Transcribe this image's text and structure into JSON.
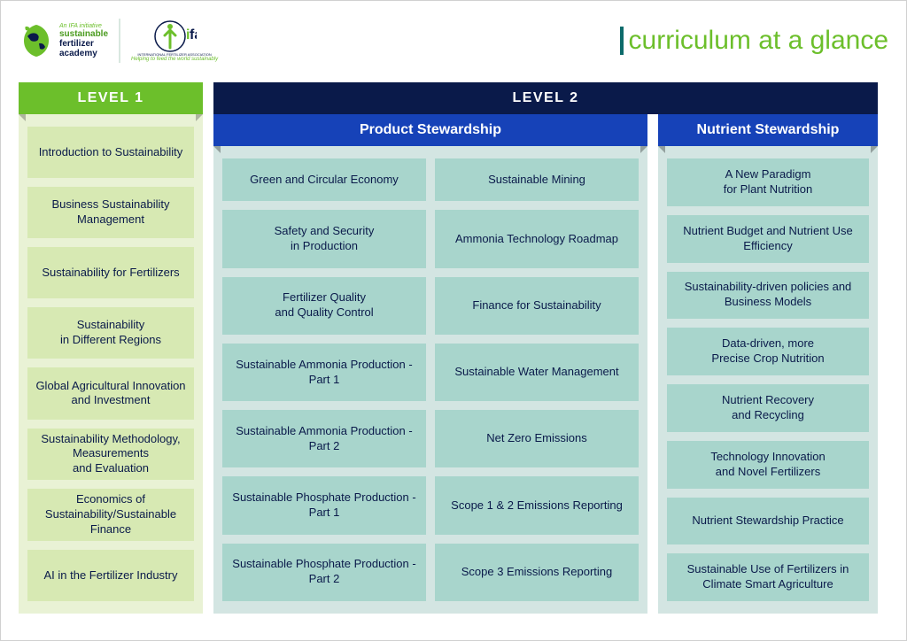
{
  "header": {
    "sfa_tagline": "An IFA initiative",
    "sfa_line1": "sustainable",
    "sfa_line2": "fertilizer",
    "sfa_line3": "academy",
    "ifa_name": "ifa",
    "ifa_sub": "INTERNATIONAL FERTILIZER ASSOCIATION",
    "ifa_tag": "Helping to feed the world sustainably",
    "title": "curriculum at a glance",
    "colors": {
      "green_primary": "#6cbf2b",
      "green_text": "#4a9b1f",
      "navy": "#0a1a4a",
      "blue_banner": "#1642b8",
      "teal_text": "#0d6b6b",
      "title_bar": "#0d6b6b"
    }
  },
  "level1": {
    "header": "LEVEL 1",
    "header_bg": "#6cbf2b",
    "body_bg": "#e9f2d5",
    "card_bg": "#d7e9b3",
    "card_text": "#0a1a4a",
    "items": [
      "Introduction to Sustainability",
      "Business Sustainability Management",
      "Sustainability for Fertilizers",
      "Sustainability\nin Different Regions",
      "Global Agricultural Innovation and Investment",
      "Sustainability Methodology, Measurements\nand Evaluation",
      "Economics of Sustainability/Sustainable Finance",
      "AI in the Fertilizer Industry"
    ]
  },
  "level2": {
    "header": "LEVEL 2",
    "header_bg": "#0a1a4a",
    "product": {
      "header": "Product Stewardship",
      "header_bg": "#1642b8",
      "body_bg": "#d3e5e2",
      "card_bg": "#a8d5cc",
      "card_text": "#0a1a4a",
      "items": [
        "Green and Circular Economy",
        "Sustainable Mining",
        "Safety and Security\nin Production",
        "Ammonia Technology Roadmap",
        "Fertilizer Quality\nand Quality Control",
        "Finance for Sustainability",
        "Sustainable Ammonia Production - Part 1",
        "Sustainable Water Management",
        "Sustainable Ammonia Production - Part 2",
        "Net Zero Emissions",
        "Sustainable Phosphate Production - Part 1",
        "Scope 1 & 2 Emissions Reporting",
        "Sustainable Phosphate Production - Part 2",
        "Scope 3 Emissions Reporting"
      ]
    },
    "nutrient": {
      "header": "Nutrient Stewardship",
      "header_bg": "#1642b8",
      "body_bg": "#d3e5e2",
      "card_bg": "#a8d5cc",
      "card_text": "#0a1a4a",
      "items": [
        "A New Paradigm\nfor Plant Nutrition",
        "Nutrient Budget and Nutrient Use Efficiency",
        "Sustainability-driven policies and Business Models",
        "Data-driven, more\nPrecise Crop Nutrition",
        "Nutrient Recovery\nand Recycling",
        "Technology Innovation\nand Novel Fertilizers",
        "Nutrient Stewardship Practice",
        "Sustainable Use of Fertilizers in Climate Smart Agriculture"
      ]
    }
  }
}
